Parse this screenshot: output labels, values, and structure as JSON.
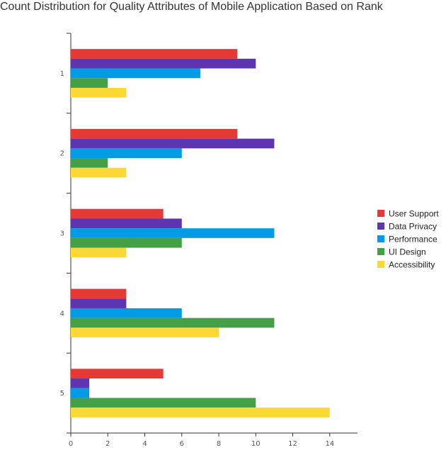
{
  "chart_data": {
    "type": "bar",
    "orientation": "horizontal",
    "title": "Count Distribution for Quality Attributes of Mobile Application Based on Rank",
    "xlabel": "",
    "ylabel": "",
    "categories": [
      "1",
      "2",
      "3",
      "4",
      "5"
    ],
    "x_ticks": [
      0,
      2,
      4,
      6,
      8,
      10,
      12,
      14
    ],
    "xlim": [
      0,
      15.5
    ],
    "grid": false,
    "legend_position": "right",
    "series": [
      {
        "name": "User Support",
        "color": "#e53935",
        "values": [
          9,
          9,
          5,
          3,
          5
        ]
      },
      {
        "name": "Data Privacy",
        "color": "#5e35b1",
        "values": [
          10,
          11,
          6,
          3,
          1
        ]
      },
      {
        "name": "Performance",
        "color": "#039be5",
        "values": [
          7,
          6,
          11,
          6,
          1
        ]
      },
      {
        "name": "UI Design",
        "color": "#43a047",
        "values": [
          2,
          2,
          6,
          11,
          10
        ]
      },
      {
        "name": "Accessibility",
        "color": "#fdd835",
        "values": [
          3,
          3,
          3,
          8,
          14
        ]
      }
    ]
  }
}
